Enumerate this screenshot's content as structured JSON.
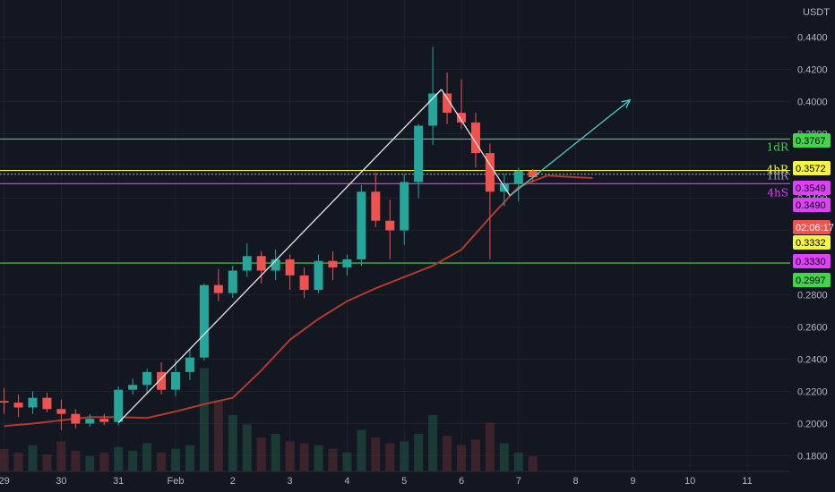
{
  "chart_data": {
    "type": "candlestick",
    "price_unit": "USDT",
    "y_axis": {
      "ylim": [
        0.17,
        0.45
      ],
      "tick_labels": [
        "0.4400",
        "0.4200",
        "0.4000",
        "0.3800",
        "0.3600",
        "0.3400",
        "0.3200",
        "0.3000",
        "0.2800",
        "0.2600",
        "0.2400",
        "0.2200",
        "0.2000",
        "0.1800"
      ],
      "tick_values": [
        0.44,
        0.42,
        0.4,
        0.38,
        0.36,
        0.34,
        0.32,
        0.3,
        0.28,
        0.26,
        0.24,
        0.22,
        0.2,
        0.18
      ]
    },
    "x_axis": {
      "tick_labels": [
        "29",
        "30",
        "31",
        "Feb",
        "2",
        "3",
        "4",
        "5",
        "6",
        "7",
        "8",
        "9",
        "10",
        "11"
      ],
      "tick_days": [
        -3,
        -2,
        -1,
        0,
        1,
        2,
        3,
        4,
        5,
        6,
        7,
        8,
        9,
        10
      ],
      "xlim_days": [
        -3.1,
        10.9
      ]
    },
    "candles_per_day": 4,
    "candles": [
      {
        "t": -3.0,
        "o": 0.214,
        "h": 0.222,
        "l": 0.206,
        "c": 0.213
      },
      {
        "t": -2.75,
        "o": 0.213,
        "h": 0.218,
        "l": 0.204,
        "c": 0.21
      },
      {
        "t": -2.5,
        "o": 0.21,
        "h": 0.22,
        "l": 0.206,
        "c": 0.216
      },
      {
        "t": -2.25,
        "o": 0.216,
        "h": 0.219,
        "l": 0.207,
        "c": 0.209
      },
      {
        "t": -2.0,
        "o": 0.209,
        "h": 0.215,
        "l": 0.196,
        "c": 0.206
      },
      {
        "t": -1.75,
        "o": 0.206,
        "h": 0.209,
        "l": 0.197,
        "c": 0.2
      },
      {
        "t": -1.5,
        "o": 0.2,
        "h": 0.206,
        "l": 0.198,
        "c": 0.203
      },
      {
        "t": -1.25,
        "o": 0.203,
        "h": 0.206,
        "l": 0.199,
        "c": 0.201
      },
      {
        "t": -1.0,
        "o": 0.201,
        "h": 0.223,
        "l": 0.199,
        "c": 0.221
      },
      {
        "t": -0.75,
        "o": 0.221,
        "h": 0.228,
        "l": 0.218,
        "c": 0.224
      },
      {
        "t": -0.5,
        "o": 0.224,
        "h": 0.234,
        "l": 0.219,
        "c": 0.232
      },
      {
        "t": -0.25,
        "o": 0.232,
        "h": 0.238,
        "l": 0.218,
        "c": 0.221
      },
      {
        "t": 0.0,
        "o": 0.221,
        "h": 0.24,
        "l": 0.217,
        "c": 0.232
      },
      {
        "t": 0.25,
        "o": 0.232,
        "h": 0.246,
        "l": 0.227,
        "c": 0.241
      },
      {
        "t": 0.5,
        "o": 0.241,
        "h": 0.287,
        "l": 0.239,
        "c": 0.286
      },
      {
        "t": 0.75,
        "o": 0.286,
        "h": 0.296,
        "l": 0.276,
        "c": 0.281
      },
      {
        "t": 1.0,
        "o": 0.281,
        "h": 0.298,
        "l": 0.278,
        "c": 0.295
      },
      {
        "t": 1.25,
        "o": 0.295,
        "h": 0.312,
        "l": 0.291,
        "c": 0.304
      },
      {
        "t": 1.5,
        "o": 0.304,
        "h": 0.307,
        "l": 0.287,
        "c": 0.295
      },
      {
        "t": 1.75,
        "o": 0.295,
        "h": 0.308,
        "l": 0.289,
        "c": 0.302
      },
      {
        "t": 2.0,
        "o": 0.302,
        "h": 0.305,
        "l": 0.283,
        "c": 0.292
      },
      {
        "t": 2.25,
        "o": 0.292,
        "h": 0.297,
        "l": 0.278,
        "c": 0.283
      },
      {
        "t": 2.5,
        "o": 0.283,
        "h": 0.305,
        "l": 0.281,
        "c": 0.301
      },
      {
        "t": 2.75,
        "o": 0.301,
        "h": 0.307,
        "l": 0.289,
        "c": 0.297
      },
      {
        "t": 3.0,
        "o": 0.297,
        "h": 0.305,
        "l": 0.292,
        "c": 0.302
      },
      {
        "t": 3.25,
        "o": 0.302,
        "h": 0.348,
        "l": 0.298,
        "c": 0.344
      },
      {
        "t": 3.5,
        "o": 0.344,
        "h": 0.356,
        "l": 0.322,
        "c": 0.326
      },
      {
        "t": 3.75,
        "o": 0.326,
        "h": 0.339,
        "l": 0.302,
        "c": 0.32
      },
      {
        "t": 4.0,
        "o": 0.32,
        "h": 0.355,
        "l": 0.311,
        "c": 0.35
      },
      {
        "t": 4.25,
        "o": 0.35,
        "h": 0.386,
        "l": 0.34,
        "c": 0.385
      },
      {
        "t": 4.5,
        "o": 0.385,
        "h": 0.434,
        "l": 0.373,
        "c": 0.405
      },
      {
        "t": 4.75,
        "o": 0.405,
        "h": 0.418,
        "l": 0.386,
        "c": 0.393
      },
      {
        "t": 5.0,
        "o": 0.393,
        "h": 0.414,
        "l": 0.383,
        "c": 0.387
      },
      {
        "t": 5.25,
        "o": 0.387,
        "h": 0.393,
        "l": 0.359,
        "c": 0.368
      },
      {
        "t": 5.5,
        "o": 0.368,
        "h": 0.374,
        "l": 0.302,
        "c": 0.344
      },
      {
        "t": 5.75,
        "o": 0.344,
        "h": 0.355,
        "l": 0.335,
        "c": 0.349
      },
      {
        "t": 6.0,
        "o": 0.349,
        "h": 0.359,
        "l": 0.338,
        "c": 0.357
      },
      {
        "t": 6.25,
        "o": 0.357,
        "h": 0.358,
        "l": 0.35,
        "c": 0.353
      }
    ],
    "sma_line": [
      {
        "t": -3.0,
        "v": 0.1985
      },
      {
        "t": -2.5,
        "v": 0.2
      },
      {
        "t": -2.0,
        "v": 0.202
      },
      {
        "t": -1.5,
        "v": 0.204
      },
      {
        "t": -1.0,
        "v": 0.204
      },
      {
        "t": -0.5,
        "v": 0.2035
      },
      {
        "t": 0.0,
        "v": 0.2075
      },
      {
        "t": 0.5,
        "v": 0.212
      },
      {
        "t": 1.0,
        "v": 0.216
      },
      {
        "t": 1.5,
        "v": 0.233
      },
      {
        "t": 2.0,
        "v": 0.252
      },
      {
        "t": 2.5,
        "v": 0.265
      },
      {
        "t": 3.0,
        "v": 0.276
      },
      {
        "t": 3.5,
        "v": 0.284
      },
      {
        "t": 4.0,
        "v": 0.291
      },
      {
        "t": 4.5,
        "v": 0.298
      },
      {
        "t": 5.0,
        "v": 0.308
      },
      {
        "t": 5.5,
        "v": 0.328
      },
      {
        "t": 6.0,
        "v": 0.347
      },
      {
        "t": 6.5,
        "v": 0.354
      },
      {
        "t": 7.0,
        "v": 0.353
      },
      {
        "t": 7.3,
        "v": 0.3525
      }
    ],
    "volume_bars": [
      0.12,
      0.1,
      0.14,
      0.09,
      0.16,
      0.11,
      0.08,
      0.1,
      0.13,
      0.11,
      0.15,
      0.1,
      0.12,
      0.14,
      0.55,
      0.38,
      0.3,
      0.25,
      0.18,
      0.2,
      0.16,
      0.15,
      0.14,
      0.12,
      0.1,
      0.22,
      0.18,
      0.15,
      0.16,
      0.2,
      0.3,
      0.19,
      0.14,
      0.17,
      0.26,
      0.15,
      0.1,
      0.08
    ],
    "trend_segments": [
      {
        "color": "#e8e8e8",
        "points": [
          {
            "t": -1.0,
            "v": 0.2005
          },
          {
            "t": 4.65,
            "v": 0.4075
          }
        ]
      },
      {
        "color": "#e8e8e8",
        "points": [
          {
            "t": 4.65,
            "v": 0.4075
          },
          {
            "t": 5.85,
            "v": 0.3415
          }
        ]
      },
      {
        "color": "#4dd0c8",
        "points": [
          {
            "t": 5.85,
            "v": 0.3415
          },
          {
            "t": 7.95,
            "v": 0.401
          }
        ],
        "arrow": true
      }
    ],
    "horizontal_levels": [
      {
        "value": 0.3767,
        "color": "#3fd64a",
        "label": "1dR"
      },
      {
        "value": 0.3572,
        "color": "#f5f542",
        "label": "4hR"
      },
      {
        "value": 0.3549,
        "color": "#9a9ab0",
        "label": "1hR",
        "dotted": true
      },
      {
        "value": 0.349,
        "color": "#e040fb",
        "label": "4hS"
      },
      {
        "value": 0.2997,
        "color": "#3fd64a",
        "label": ""
      }
    ],
    "price_badges": [
      {
        "text": "0.3767",
        "bg": "#3fd64a",
        "fg": "#000000"
      },
      {
        "text": "0.3572",
        "bg": "#f5f542",
        "fg": "#000000"
      },
      {
        "text": "0.3549",
        "bg": "#e040fb",
        "fg": "#000000"
      },
      {
        "text": "0.3490",
        "bg": "#e040fb",
        "fg": "#000000"
      },
      {
        "text": "02:06:17",
        "bg": "#ef5350",
        "fg": "#ffffff"
      },
      {
        "text": "0.3332",
        "bg": "#f5f542",
        "fg": "#000000"
      },
      {
        "text": "0.3330",
        "bg": "#e040fb",
        "fg": "#000000"
      },
      {
        "text": "0.2997",
        "bg": "#3fd64a",
        "fg": "#000000"
      }
    ],
    "colors": {
      "up": "#26a69a",
      "down": "#ef5350",
      "sma": "#b23a2c",
      "bg": "#131722",
      "grid": "#1e222d",
      "axis_text": "#b2b5be"
    }
  }
}
